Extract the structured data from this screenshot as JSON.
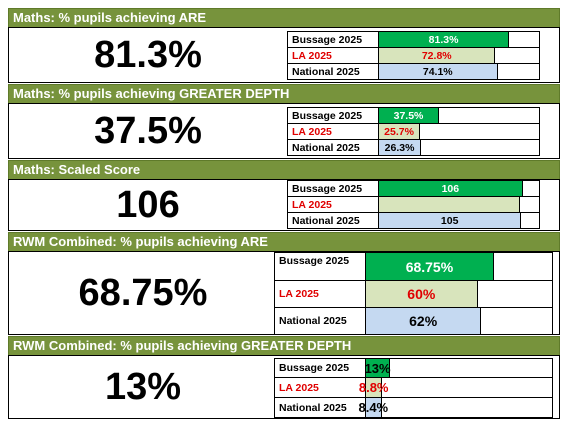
{
  "colors": {
    "header": "#77933c",
    "school": "#00b050",
    "la": "#d8e4bc",
    "national": "#c5d9f1",
    "la_text": "#e00000"
  },
  "sections": [
    {
      "title": "Maths: % pupils achieving ARE",
      "headline": "81.3%",
      "rows": [
        {
          "label": "Bussage 2025",
          "value": "81.3%",
          "level": 81.3
        },
        {
          "label": "LA 2025",
          "value": "72.8%",
          "level": 72.8
        },
        {
          "label": "National 2025",
          "value": "74.1%",
          "level": 74.1
        }
      ]
    },
    {
      "title": "Maths: % pupils achieving GREATER DEPTH",
      "headline": "37.5%",
      "rows": [
        {
          "label": "Bussage 2025",
          "value": "37.5%",
          "level": 37.5
        },
        {
          "label": "LA 2025",
          "value": "25.7%",
          "level": 25.7
        },
        {
          "label": "National 2025",
          "value": "26.3%",
          "level": 26.3
        }
      ]
    },
    {
      "title": "Maths: Scaled Score",
      "headline": "106",
      "rows": [
        {
          "label": "Bussage 2025",
          "value": "106",
          "level": 106
        },
        {
          "label": "LA 2025",
          "value": "",
          "level": 104
        },
        {
          "label": "National 2025",
          "value": "105",
          "level": 105
        }
      ]
    },
    {
      "title": "RWM Combined: % pupils achieving ARE",
      "headline": "68.75%",
      "rows": [
        {
          "label": "Bussage 2025",
          "value": "68.75%",
          "level": 68.75
        },
        {
          "label": "LA 2025",
          "value": "60%",
          "level": 60
        },
        {
          "label": "National 2025",
          "value": "62%",
          "level": 62
        }
      ]
    },
    {
      "title": "RWM Combined: % pupils achieving GREATER DEPTH",
      "headline": "13%",
      "rows": [
        {
          "label": "Bussage 2025",
          "value": "13%",
          "level": 13
        },
        {
          "label": "LA 2025",
          "value": "8.8%",
          "level": 8.8
        },
        {
          "label": "National 2025",
          "value": "8.4%",
          "level": 8.4
        }
      ]
    }
  ]
}
